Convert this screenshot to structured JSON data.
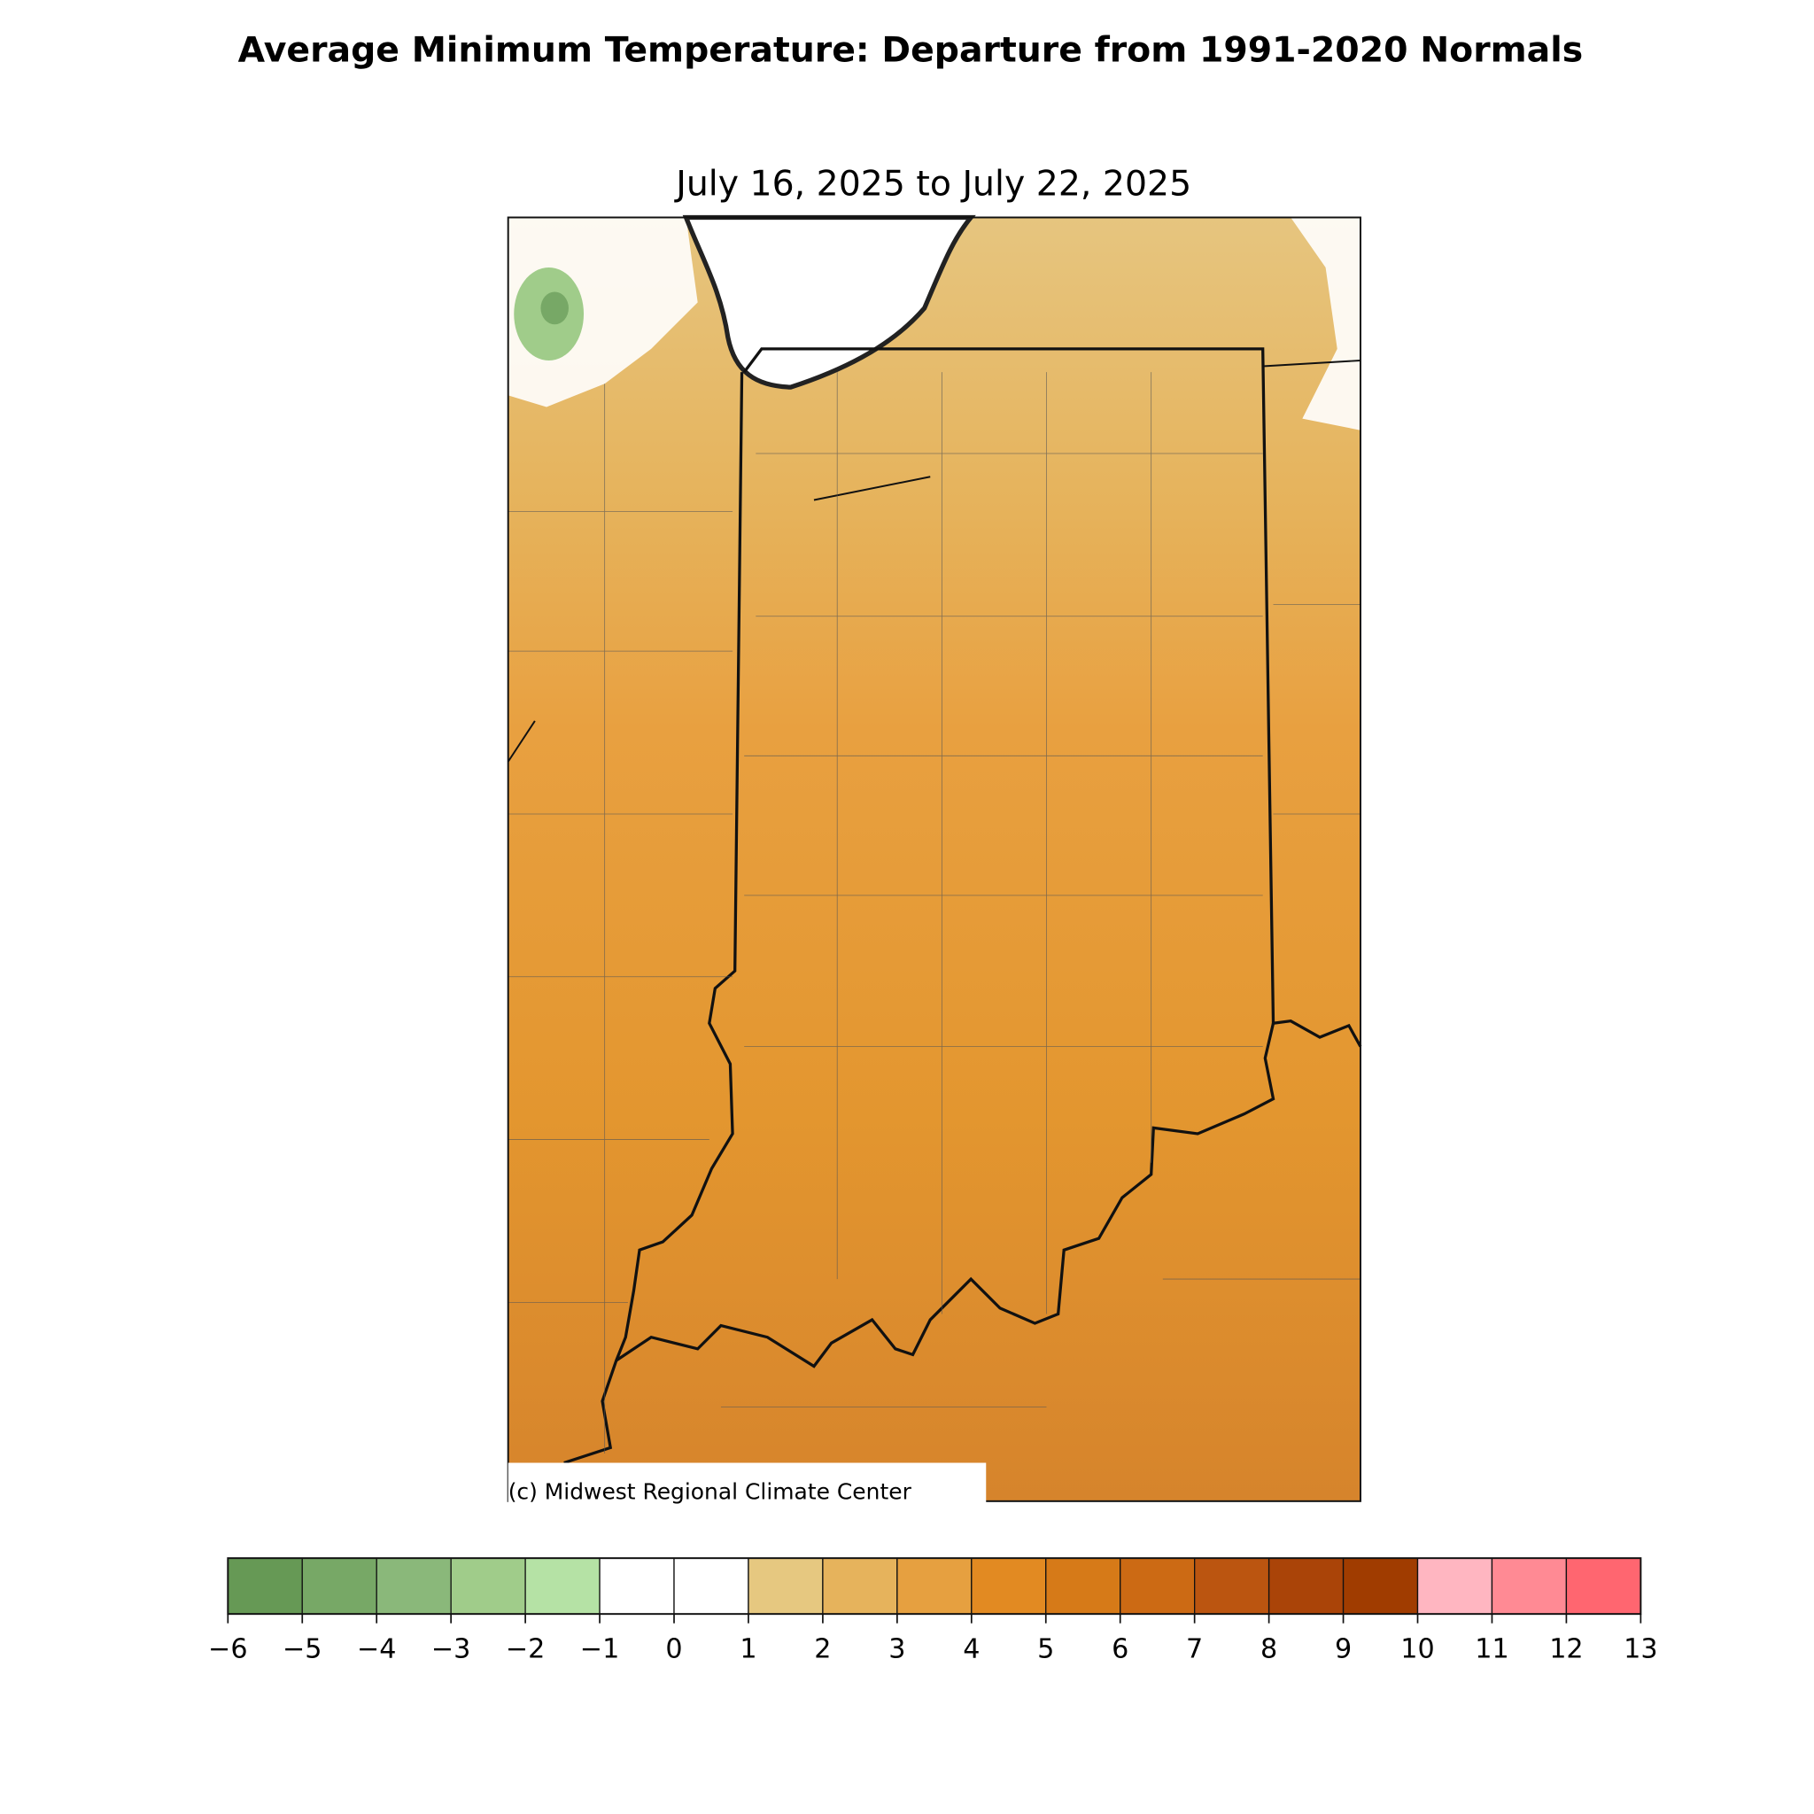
{
  "title": "Average Minimum Temperature: Departure from 1991-2020 Normals",
  "subtitle": "July 16, 2025 to July 22, 2025",
  "credit": "(c) Midwest Regional Climate Center",
  "colorbar": {
    "ticks": [
      {
        "value": -6,
        "label": "−6"
      },
      {
        "value": -5,
        "label": "−5"
      },
      {
        "value": -4,
        "label": "−4"
      },
      {
        "value": -3,
        "label": "−3"
      },
      {
        "value": -2,
        "label": "−2"
      },
      {
        "value": -1,
        "label": "−1"
      },
      0,
      1,
      2,
      3,
      4,
      5,
      6,
      7,
      8,
      9,
      10,
      11,
      12,
      13
    ],
    "lim": [
      -6,
      13
    ],
    "colors": [
      "#669955",
      "#77a866",
      "#8ab87a",
      "#a0cc8a",
      "#b5e2a5",
      "#ffffff",
      "#ffffff",
      "#e6c880",
      "#e6b35c",
      "#e6a040",
      "#e28a22",
      "#d67a18",
      "#cc6a14",
      "#bb5510",
      "#aa4408",
      "#a03c00",
      "#ffb6c1",
      "#ff8a94",
      "#ff6670"
    ]
  }
}
